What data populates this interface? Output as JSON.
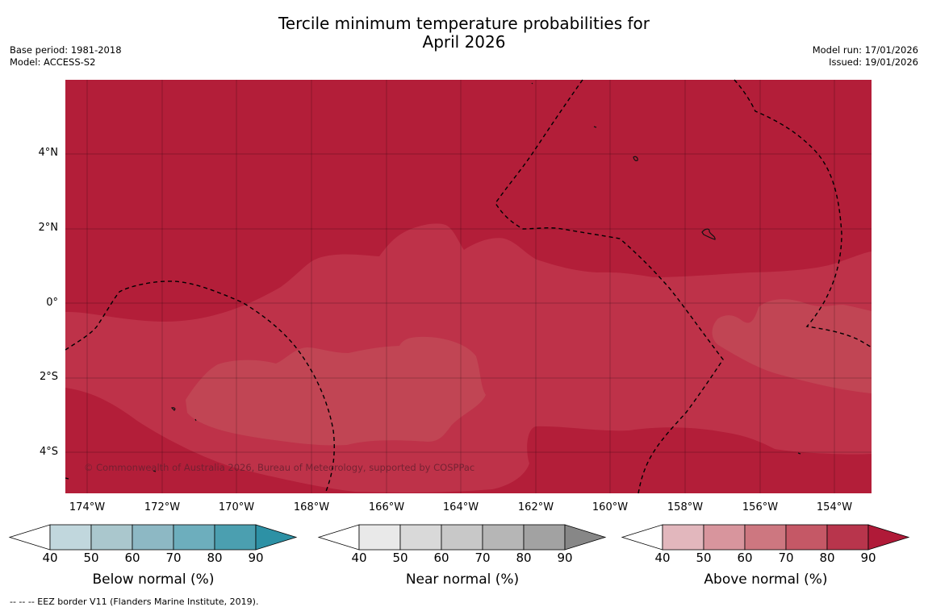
{
  "title": {
    "line1": "Tercile minimum temperature probabilities for",
    "line2": "April 2026"
  },
  "meta": {
    "base_period": "Base period: 1981-2018",
    "model": "Model: ACCESS-S2",
    "model_run": "Model run: 17/01/2026",
    "issued": "Issued: 19/01/2026"
  },
  "map": {
    "lat_labels": [
      "4°N",
      "2°N",
      "0°",
      "2°S",
      "4°S"
    ],
    "lon_labels": [
      "174°W",
      "172°W",
      "170°W",
      "168°W",
      "166°W",
      "164°W",
      "162°W",
      "160°W",
      "158°W",
      "156°W",
      "154°W"
    ],
    "copyright": "© Commonwealth of Australia 2026, Bureau of Meteorology, supported by COSPPac",
    "field_category": "Above normal",
    "field_levels_percent": [
      70,
      80,
      90
    ],
    "colors": {
      "above_90": "#b31e39",
      "above_80": "#be3249",
      "above_70": "#c14554"
    }
  },
  "colorbars": [
    {
      "name": "below",
      "title": "Below normal (%)",
      "ticks": [
        "40",
        "50",
        "60",
        "70",
        "80",
        "90"
      ],
      "colors": [
        "#c1d7dd",
        "#aac7cd",
        "#8db8c4",
        "#6daebd",
        "#4b9fb0",
        "#2d91a5"
      ]
    },
    {
      "name": "near",
      "title": "Near normal (%)",
      "ticks": [
        "40",
        "50",
        "60",
        "70",
        "80",
        "90"
      ],
      "colors": [
        "#e9e9e9",
        "#d9d9d9",
        "#c8c8c8",
        "#b6b6b6",
        "#a2a2a2",
        "#878787"
      ]
    },
    {
      "name": "above",
      "title": "Above normal (%)",
      "ticks": [
        "40",
        "50",
        "60",
        "70",
        "80",
        "90"
      ],
      "colors": [
        "#e2b7bd",
        "#d8959d",
        "#cd7780",
        "#c55866",
        "#b8354c",
        "#b01a38"
      ]
    }
  ],
  "footnote": "--  --  -- EEZ border V11 (Flanders Marine Institute, 2019)."
}
